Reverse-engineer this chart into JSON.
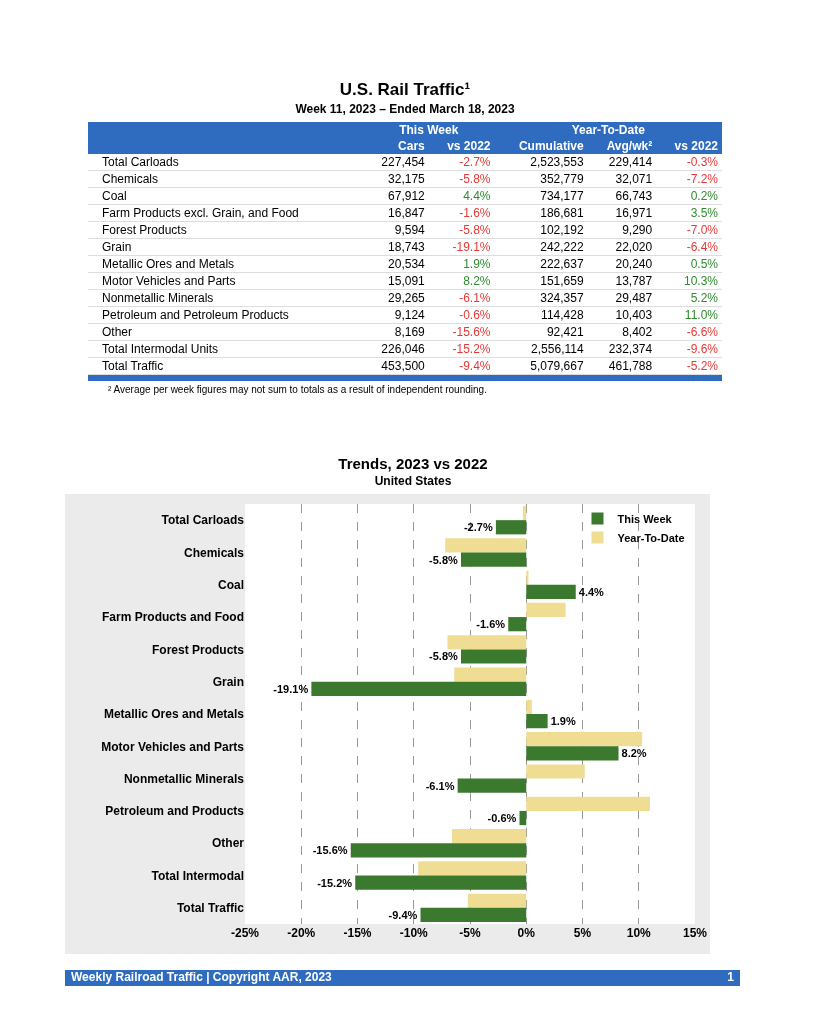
{
  "chart_data": [
    {
      "type": "other",
      "title": "U.S. Rail Traffic¹",
      "subtitle": "Week 11, 2023 – Ended March 18, 2023",
      "categories": [
        "Cars",
        "vs 2022",
        "Cumulative",
        "Avg/wk²",
        "vs 2022"
      ],
      "y_categories": [
        "Total Carloads",
        "Chemicals",
        "Coal",
        "Farm Products excl. Grain, and Food",
        "Forest Products",
        "Grain",
        "Metallic Ores and Metals",
        "Motor Vehicles and Parts",
        "Nonmetallic Minerals",
        "Petroleum and Petroleum Products",
        "Other",
        "Total Intermodal Units",
        "Total Traffic"
      ],
      "cell_labels": [
        [
          "227,454",
          "-2.7%",
          "2,523,553",
          "229,414",
          "-0.3%"
        ],
        [
          "32,175",
          "-5.8%",
          "352,779",
          "32,071",
          "-7.2%"
        ],
        [
          "67,912",
          "4.4%",
          "734,177",
          "66,743",
          "0.2%"
        ],
        [
          "16,847",
          "-1.6%",
          "186,681",
          "16,971",
          "3.5%"
        ],
        [
          "9,594",
          "-5.8%",
          "102,192",
          "9,290",
          "-7.0%"
        ],
        [
          "18,743",
          "-19.1%",
          "242,222",
          "22,020",
          "-6.4%"
        ],
        [
          "20,534",
          "1.9%",
          "222,637",
          "20,240",
          "0.5%"
        ],
        [
          "15,091",
          "8.2%",
          "151,659",
          "13,787",
          "10.3%"
        ],
        [
          "29,265",
          "-6.1%",
          "324,357",
          "29,487",
          "5.2%"
        ],
        [
          "9,124",
          "-0.6%",
          "114,428",
          "10,403",
          "11.0%"
        ],
        [
          "8,169",
          "-15.6%",
          "92,421",
          "8,402",
          "-6.6%"
        ],
        [
          "226,046",
          "-15.2%",
          "2,556,114",
          "232,374",
          "-9.6%"
        ],
        [
          "453,500",
          "-9.4%",
          "5,079,667",
          "461,788",
          "-5.2%"
        ]
      ],
      "annotations": [
        "This Week",
        "Year-To-Date",
        "² Average per week figures may not sum to totals as a result of independent rounding."
      ]
    },
    {
      "type": "bar",
      "orientation": "horizontal",
      "title": "Trends, 2023 vs 2022",
      "subtitle": "United States",
      "categories": [
        "Total Carloads",
        "Chemicals",
        "Coal",
        "Farm Products and Food",
        "Forest Products",
        "Grain",
        "Metallic Ores and Metals",
        "Motor Vehicles and Parts",
        "Nonmetallic Minerals",
        "Petroleum and Products",
        "Other",
        "Total Intermodal",
        "Total Traffic"
      ],
      "series": [
        {
          "name": "This Week",
          "color": "#3b7a2e",
          "values": [
            -2.7,
            -5.8,
            4.4,
            -1.6,
            -5.8,
            -19.1,
            1.9,
            8.2,
            -6.1,
            -0.6,
            -15.6,
            -15.2,
            -9.4
          ],
          "value_labels": [
            "-2.7%",
            "-5.8%",
            "4.4%",
            "-1.6%",
            "-5.8%",
            "-19.1%",
            "1.9%",
            "8.2%",
            "-6.1%",
            "-0.6%",
            "-15.6%",
            "-15.2%",
            "-9.4%"
          ]
        },
        {
          "name": "Year-To-Date",
          "color": "#f0dd94",
          "values": [
            -0.3,
            -7.2,
            0.2,
            3.5,
            -7.0,
            -6.4,
            0.5,
            10.3,
            5.2,
            11.0,
            -6.6,
            -9.6,
            -5.2
          ]
        }
      ],
      "xlim": [
        -25,
        15
      ],
      "xticks": [
        {
          "value": -25,
          "label": "-25%"
        },
        {
          "value": -20,
          "label": "-20%"
        },
        {
          "value": -15,
          "label": "-15%"
        },
        {
          "value": -10,
          "label": "-10%"
        },
        {
          "value": -5,
          "label": "-5%"
        },
        {
          "value": 0,
          "label": "0%"
        },
        {
          "value": 5,
          "label": "5%"
        },
        {
          "value": 10,
          "label": "10%"
        },
        {
          "value": 15,
          "label": "15%"
        }
      ],
      "grid": "x",
      "legend": "top right",
      "annotations": [
        "Weekly Railroad Traffic | Copyright AAR, 2023",
        "1"
      ]
    }
  ]
}
